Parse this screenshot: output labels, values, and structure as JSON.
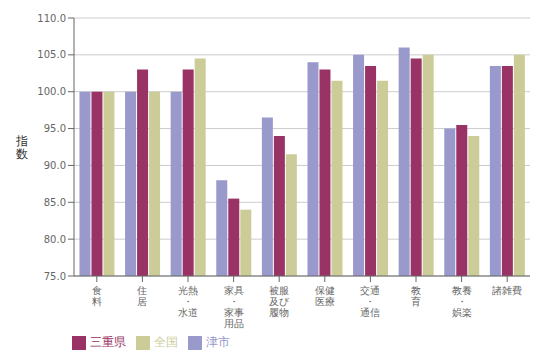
{
  "chart_data": {
    "type": "bar",
    "ylabel": "指\n数",
    "categories": [
      "食\n料",
      "住\n居",
      "光熱\n・\n水道",
      "家具\n・\n家事\n用品",
      "被服\n及び\n履物",
      "保健\n医療",
      "交通\n・\n通信",
      "教\n育",
      "教養\n・\n娯楽",
      "諸雑費"
    ],
    "series": [
      {
        "name": "津市",
        "color": "#9999CC",
        "values": [
          100.0,
          100.0,
          100.0,
          88.0,
          96.5,
          104.0,
          105.0,
          106.0,
          95.0,
          103.5
        ]
      },
      {
        "name": "三重県",
        "color": "#993366",
        "values": [
          100.0,
          103.0,
          103.0,
          85.5,
          94.0,
          103.0,
          103.5,
          104.5,
          95.5,
          103.5
        ]
      },
      {
        "name": "全国",
        "color": "#CCCC99",
        "values": [
          100.0,
          100.0,
          104.5,
          84.0,
          91.5,
          101.5,
          101.5,
          105.0,
          94.0,
          105.0
        ]
      }
    ],
    "ylim": [
      75.0,
      110.0
    ],
    "yticks": [
      {
        "value": 75.0,
        "label": "75.0"
      },
      {
        "value": 80.0,
        "label": "80.0"
      },
      {
        "value": 85.0,
        "label": "85.0"
      },
      {
        "value": 90.0,
        "label": "90.0"
      },
      {
        "value": 95.0,
        "label": "95.0"
      },
      {
        "value": 100.0,
        "label": "100.0"
      },
      {
        "value": 105.0,
        "label": "105.0"
      },
      {
        "value": 110.0,
        "label": "110.0"
      }
    ],
    "grid": true,
    "legend": "lower left"
  }
}
